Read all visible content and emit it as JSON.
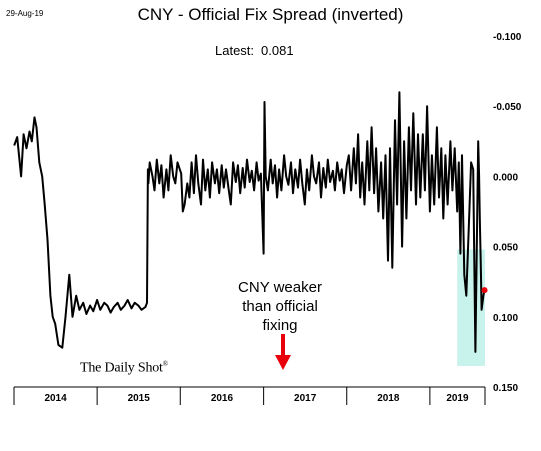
{
  "header": {
    "date": "29-Aug-19",
    "title": "CNY - Official Fix Spread (inverted)",
    "latest_label": "Latest:",
    "latest_value": "0.081"
  },
  "annotation": {
    "lines": [
      "CNY weaker",
      "than official",
      "fixing"
    ],
    "arrow_color": "#e8000b"
  },
  "branding": {
    "name": "The Daily Shot",
    "mark": "®"
  },
  "colors": {
    "line": "#000000",
    "highlight": "#c8f2ec",
    "latest_dot": "#e8000b",
    "arrow": "#e8000b"
  },
  "chart_data": {
    "type": "line",
    "title": "CNY - Official Fix Spread (inverted)",
    "y_inverted": true,
    "ylim": [
      0.15,
      -0.1
    ],
    "y_ticks": [
      "-0.100",
      "-0.050",
      "0.000",
      "0.050",
      "0.100",
      "0.150"
    ],
    "x_ticks": [
      "2014",
      "2015",
      "2016",
      "2017",
      "2018",
      "2019"
    ],
    "x_range": [
      "2014-01-01",
      "2019-08-31"
    ],
    "latest_point": {
      "x": "2019-08-29",
      "y": 0.081
    },
    "highlight_region": {
      "x": [
        "2019-05-01",
        "2019-08-31"
      ],
      "y": [
        0.135,
        0.052
      ]
    },
    "series": [
      {
        "x": [
          "2014-01-02",
          "2014-01-15",
          "2014-02-01",
          "2014-02-12",
          "2014-02-25",
          "2014-03-10",
          "2014-03-20",
          "2014-04-01",
          "2014-04-10",
          "2014-04-22",
          "2014-05-05",
          "2014-05-16",
          "2014-05-28",
          "2014-06-10",
          "2014-06-20",
          "2014-07-01",
          "2014-07-15",
          "2014-08-01",
          "2014-08-15",
          "2014-09-01",
          "2014-09-15",
          "2014-10-01",
          "2014-10-15",
          "2014-11-01",
          "2014-11-15",
          "2014-12-01",
          "2014-12-15",
          "2015-01-01",
          "2015-01-15",
          "2015-02-01",
          "2015-02-15",
          "2015-03-01",
          "2015-03-15",
          "2015-04-01",
          "2015-04-15",
          "2015-05-01",
          "2015-05-15",
          "2015-06-01",
          "2015-06-15",
          "2015-07-01",
          "2015-07-15",
          "2015-08-01",
          "2015-08-08",
          "2015-08-12",
          "2015-08-14",
          "2015-08-20",
          "2015-09-01",
          "2015-09-10",
          "2015-09-20",
          "2015-10-01",
          "2015-10-10",
          "2015-10-20",
          "2015-11-01",
          "2015-11-10",
          "2015-11-20",
          "2015-12-01",
          "2015-12-10",
          "2015-12-20",
          "2016-01-05",
          "2016-01-12",
          "2016-01-20",
          "2016-02-01",
          "2016-02-10",
          "2016-02-20",
          "2016-03-01",
          "2016-03-10",
          "2016-03-20",
          "2016-04-01",
          "2016-04-10",
          "2016-04-20",
          "2016-05-01",
          "2016-05-10",
          "2016-05-20",
          "2016-06-01",
          "2016-06-10",
          "2016-06-20",
          "2016-07-01",
          "2016-07-10",
          "2016-07-20",
          "2016-08-01",
          "2016-08-10",
          "2016-08-20",
          "2016-09-01",
          "2016-09-10",
          "2016-09-20",
          "2016-10-01",
          "2016-10-10",
          "2016-10-20",
          "2016-11-01",
          "2016-11-10",
          "2016-11-20",
          "2016-12-01",
          "2016-12-10",
          "2016-12-20",
          "2017-01-01",
          "2017-01-05",
          "2017-01-10",
          "2017-01-20",
          "2017-02-01",
          "2017-02-10",
          "2017-02-20",
          "2017-03-01",
          "2017-03-10",
          "2017-03-20",
          "2017-04-01",
          "2017-04-10",
          "2017-04-20",
          "2017-05-01",
          "2017-05-10",
          "2017-05-20",
          "2017-06-01",
          "2017-06-10",
          "2017-06-20",
          "2017-07-01",
          "2017-07-10",
          "2017-07-20",
          "2017-08-01",
          "2017-08-10",
          "2017-08-20",
          "2017-09-01",
          "2017-09-10",
          "2017-09-20",
          "2017-10-01",
          "2017-10-10",
          "2017-10-20",
          "2017-11-01",
          "2017-11-10",
          "2017-11-20",
          "2017-12-01",
          "2017-12-10",
          "2017-12-20",
          "2018-01-01",
          "2018-01-10",
          "2018-01-20",
          "2018-02-01",
          "2018-02-10",
          "2018-02-20",
          "2018-03-01",
          "2018-03-10",
          "2018-03-20",
          "2018-04-01",
          "2018-04-10",
          "2018-04-20",
          "2018-05-01",
          "2018-05-10",
          "2018-05-20",
          "2018-06-01",
          "2018-06-10",
          "2018-06-20",
          "2018-07-01",
          "2018-07-10",
          "2018-07-20",
          "2018-08-01",
          "2018-08-10",
          "2018-08-20",
          "2018-09-01",
          "2018-09-10",
          "2018-09-20",
          "2018-10-01",
          "2018-10-10",
          "2018-10-20",
          "2018-11-01",
          "2018-11-10",
          "2018-11-20",
          "2018-12-01",
          "2018-12-10",
          "2018-12-20",
          "2019-01-01",
          "2019-01-10",
          "2019-01-20",
          "2019-02-01",
          "2019-02-10",
          "2019-02-20",
          "2019-03-01",
          "2019-03-10",
          "2019-03-20",
          "2019-04-01",
          "2019-04-10",
          "2019-04-20",
          "2019-05-01",
          "2019-05-08",
          "2019-05-15",
          "2019-05-22",
          "2019-06-01",
          "2019-06-10",
          "2019-06-20",
          "2019-07-01",
          "2019-07-10",
          "2019-07-20",
          "2019-08-01",
          "2019-08-05",
          "2019-08-08",
          "2019-08-12",
          "2019-08-16",
          "2019-08-20",
          "2019-08-24",
          "2019-08-29"
        ],
        "values": [
          -0.022,
          -0.028,
          0.0,
          -0.03,
          -0.02,
          -0.032,
          -0.025,
          -0.042,
          -0.035,
          -0.01,
          0.0,
          0.02,
          0.045,
          0.085,
          0.1,
          0.105,
          0.12,
          0.122,
          0.1,
          0.07,
          0.1,
          0.085,
          0.095,
          0.09,
          0.098,
          0.092,
          0.096,
          0.088,
          0.095,
          0.09,
          0.092,
          0.097,
          0.093,
          0.09,
          0.095,
          0.092,
          0.088,
          0.094,
          0.09,
          0.092,
          0.095,
          0.093,
          0.09,
          -0.005,
          0.005,
          -0.01,
          0.0,
          0.01,
          -0.012,
          0.005,
          -0.008,
          0.015,
          -0.005,
          0.01,
          -0.015,
          0.0,
          0.005,
          -0.01,
          -0.002,
          0.025,
          0.02,
          0.005,
          0.015,
          -0.01,
          0.012,
          -0.015,
          0.005,
          0.02,
          -0.012,
          0.01,
          -0.005,
          0.015,
          -0.01,
          0.005,
          -0.005,
          0.012,
          -0.008,
          0.008,
          -0.005,
          0.01,
          0.02,
          -0.01,
          0.004,
          -0.008,
          0.012,
          -0.006,
          0.008,
          -0.012,
          0.004,
          -0.004,
          0.01,
          -0.01,
          0.003,
          -0.002,
          0.055,
          -0.053,
          0.0,
          0.01,
          -0.012,
          0.005,
          -0.008,
          0.015,
          -0.005,
          0.01,
          -0.015,
          0.0,
          0.006,
          -0.01,
          0.012,
          -0.005,
          0.008,
          -0.012,
          0.005,
          0.02,
          -0.005,
          0.01,
          -0.015,
          0.0,
          0.005,
          -0.01,
          0.015,
          -0.006,
          0.008,
          -0.012,
          0.004,
          -0.004,
          0.01,
          -0.01,
          0.003,
          -0.005,
          0.012,
          -0.008,
          -0.015,
          0.01,
          -0.02,
          0.005,
          -0.03,
          0.015,
          -0.01,
          0.02,
          -0.025,
          0.01,
          -0.035,
          0.012,
          -0.02,
          0.025,
          -0.01,
          0.03,
          -0.015,
          0.06,
          -0.02,
          0.065,
          -0.04,
          0.02,
          -0.06,
          0.05,
          -0.025,
          0.03,
          -0.035,
          0.01,
          -0.045,
          0.02,
          -0.03,
          0.015,
          -0.03,
          0.01,
          -0.05,
          0.025,
          -0.015,
          0.02,
          -0.035,
          0.015,
          -0.02,
          0.03,
          -0.015,
          0.02,
          -0.025,
          0.01,
          -0.02,
          0.025,
          -0.01,
          0.055,
          -0.015,
          0.07,
          0.085,
          0.04,
          -0.01,
          -0.005,
          0.125,
          -0.025,
          0.0,
          0.03,
          0.06,
          0.095,
          0.09,
          0.085,
          0.081
        ]
      }
    ]
  }
}
